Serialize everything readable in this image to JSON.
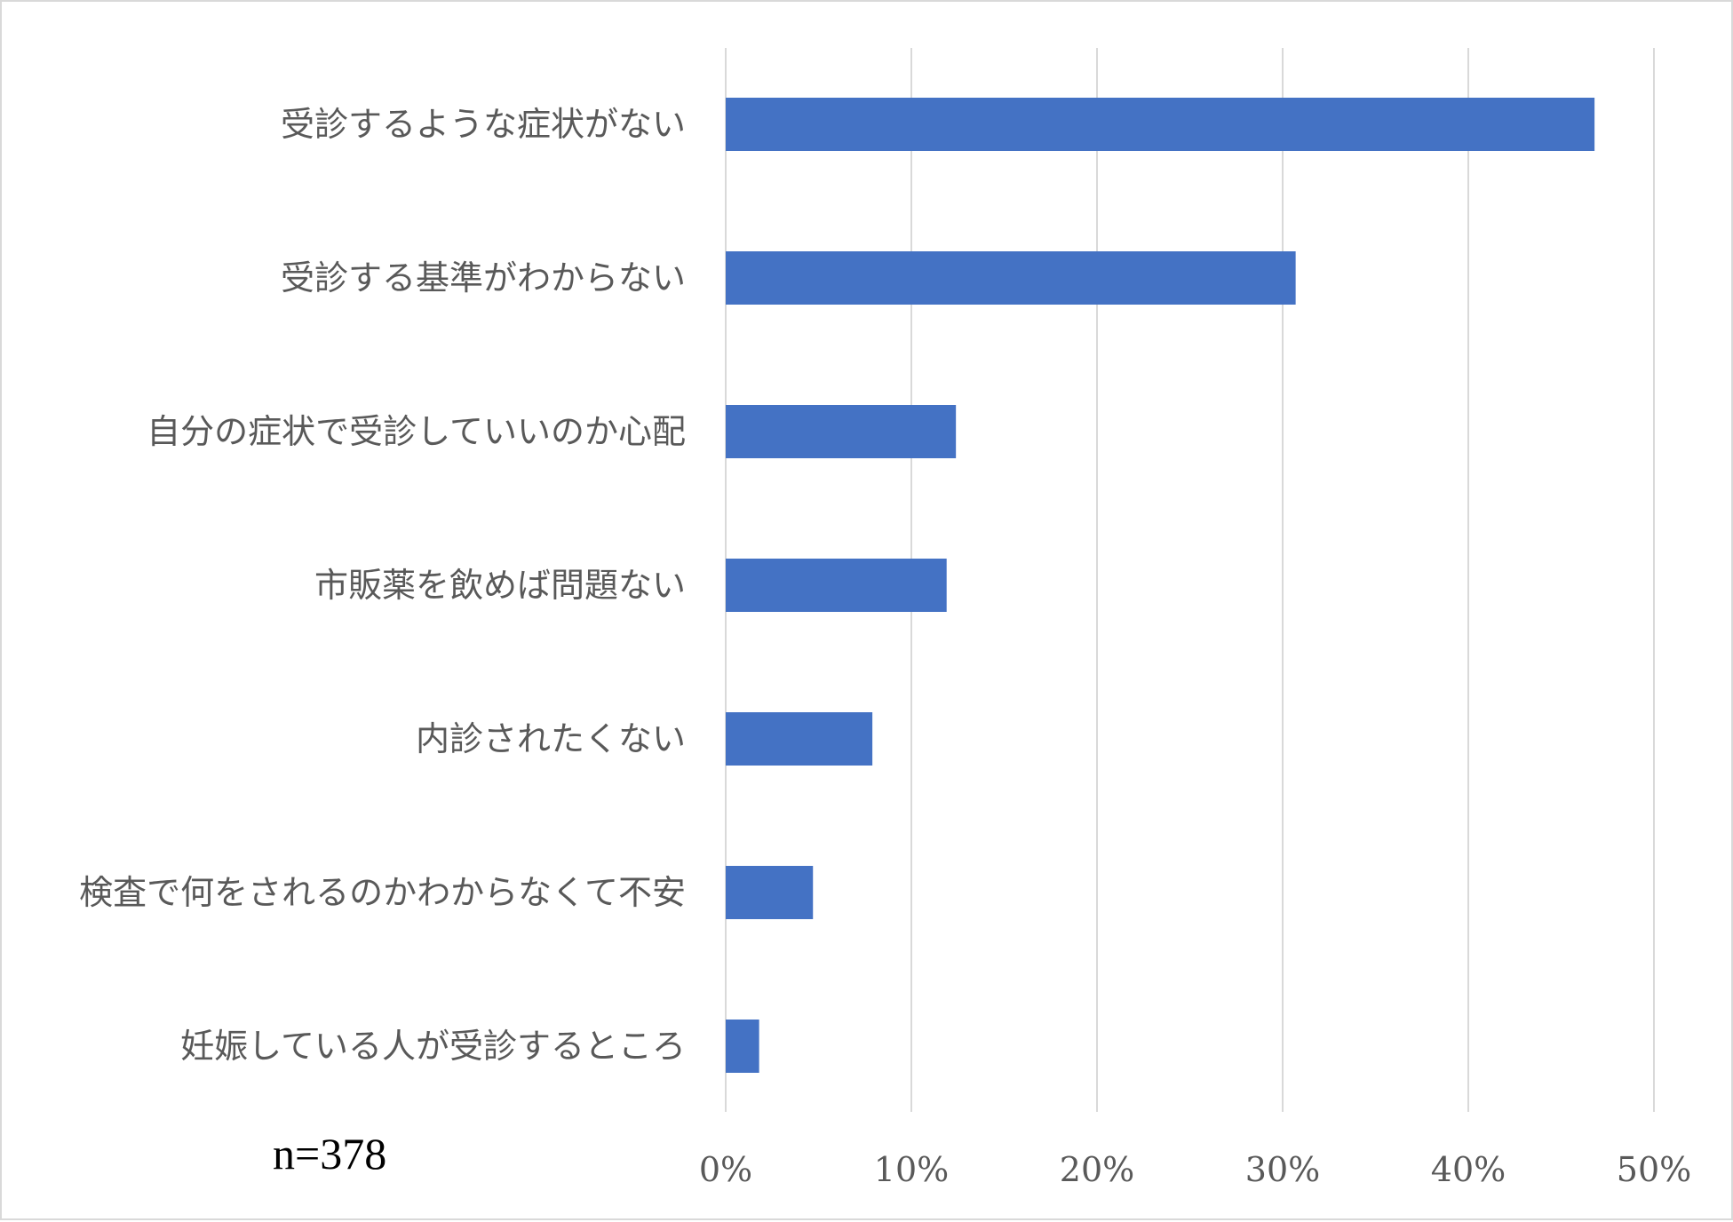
{
  "note": "n=378",
  "chart_data": {
    "type": "bar",
    "orientation": "horizontal",
    "categories": [
      "受診するような症状がない",
      "受診する基準がわからない",
      "自分の症状で受診していいのか心配",
      "市販薬を飲めば問題ない",
      "内診されたくない",
      "検査で何をされるのかわからなくて不安",
      "妊娠している人が受診するところ"
    ],
    "values": [
      0.468,
      0.307,
      0.124,
      0.119,
      0.079,
      0.047,
      0.018
    ],
    "xlim": [
      0,
      0.5
    ],
    "tick_values": [
      0,
      0.1,
      0.2,
      0.3,
      0.4,
      0.5
    ],
    "tick_labels": [
      "0%",
      "10%",
      "20%",
      "30%",
      "40%",
      "50%"
    ],
    "title": "",
    "xlabel": "",
    "ylabel": "",
    "grid": true,
    "legend": "none",
    "bar_color": "#4472c4",
    "grid_color": "#d9d9d9",
    "label_color": "#595959"
  }
}
